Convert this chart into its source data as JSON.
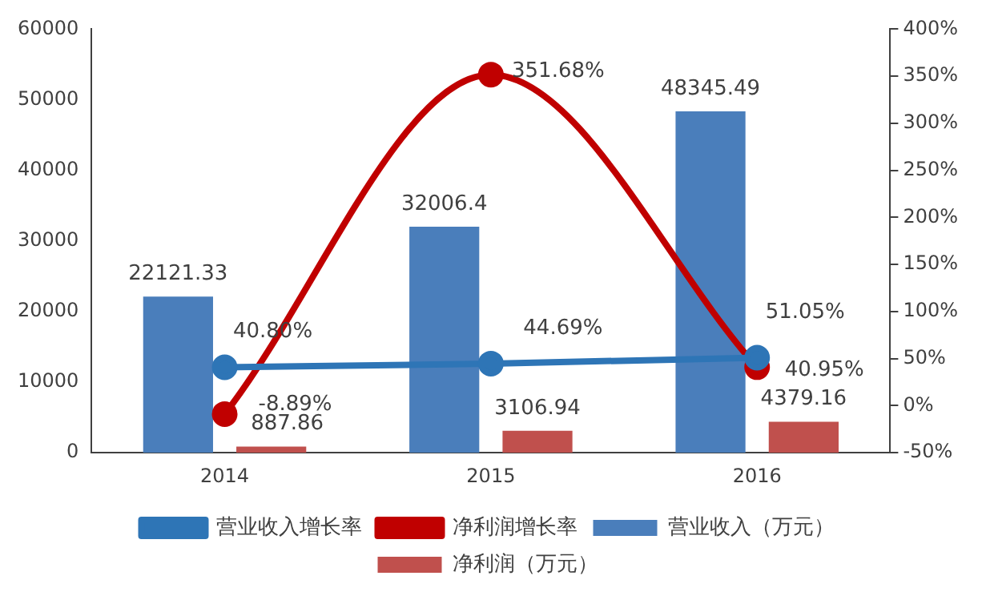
{
  "chart_data": {
    "type": "bar",
    "categories": [
      "2014",
      "2015",
      "2016"
    ],
    "series": [
      {
        "name": "营业收入（万元）",
        "color": "#4a7ebb",
        "values": [
          22121.33,
          32006.4,
          48345.49
        ],
        "value_labels": [
          "22121.33",
          "32006.4",
          "48345.49"
        ]
      },
      {
        "name": "净利润（万元）",
        "color": "#c0504d",
        "values": [
          887.86,
          3106.94,
          4379.16
        ],
        "value_labels": [
          "887.86",
          "3106.94",
          "4379.16"
        ]
      },
      {
        "name": "营业收入增长率",
        "type": "line",
        "axis": "y2",
        "color": "#2e75b6",
        "values": [
          40.8,
          44.69,
          51.05
        ],
        "value_labels": [
          "40.80%",
          "44.69%",
          "51.05%"
        ]
      },
      {
        "name": "净利润增长率",
        "type": "line",
        "axis": "y2",
        "color": "#c00000",
        "values": [
          -8.89,
          351.68,
          40.95
        ],
        "value_labels": [
          "-8.89%",
          "351.68%",
          "40.95%"
        ]
      }
    ],
    "ylim": [
      0,
      60000
    ],
    "yticks": [
      0,
      10000,
      20000,
      30000,
      40000,
      50000,
      60000
    ],
    "y2lim": [
      -50,
      400
    ],
    "y2ticks": [
      {
        "value": -50,
        "label": "-50%"
      },
      {
        "value": 0,
        "label": "0%"
      },
      {
        "value": 50,
        "label": "50%"
      },
      {
        "value": 100,
        "label": "100%"
      },
      {
        "value": 150,
        "label": "150%"
      },
      {
        "value": 200,
        "label": "200%"
      },
      {
        "value": 250,
        "label": "250%"
      },
      {
        "value": 300,
        "label": "300%"
      },
      {
        "value": 350,
        "label": "350%"
      },
      {
        "value": 400,
        "label": "400%"
      }
    ],
    "grid": false,
    "legend": "bottom",
    "marker": "circle"
  }
}
